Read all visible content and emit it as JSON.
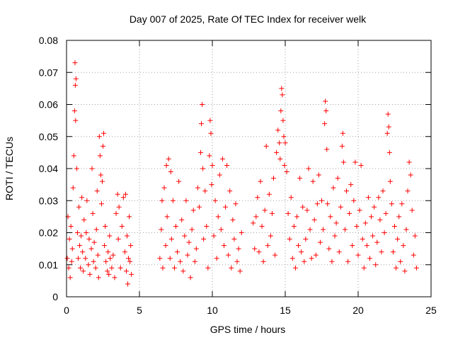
{
  "chart_data": {
    "type": "scatter",
    "title": "Day 007 of 2025, Rate Of TEC Index for receiver welk",
    "xlabel": "GPS time / hours",
    "ylabel": "ROTI / TECUs",
    "xlim": [
      0,
      25
    ],
    "ylim": [
      0,
      0.08
    ],
    "xticks": [
      0,
      5,
      10,
      15,
      20,
      25
    ],
    "xtick_labels": [
      "0",
      "5",
      "10",
      "15",
      "20",
      "25"
    ],
    "yticks": [
      0,
      0.01,
      0.02,
      0.03,
      0.04,
      0.05,
      0.06,
      0.07,
      0.08
    ],
    "ytick_labels": [
      "0",
      "0.01",
      "0.02",
      "0.03",
      "0.04",
      "0.05",
      "0.06",
      "0.07",
      "0.08"
    ],
    "grid": true,
    "marker": "+",
    "color": "#ff0000",
    "series": [
      {
        "points": [
          [
            0.05,
            0.012
          ],
          [
            0.1,
            0.025
          ],
          [
            0.15,
            0.009
          ],
          [
            0.2,
            0.018
          ],
          [
            0.25,
            0.006
          ],
          [
            0.3,
            0.022
          ],
          [
            0.35,
            0.011
          ],
          [
            0.4,
            0.015
          ],
          [
            0.45,
            0.034
          ],
          [
            0.5,
            0.044
          ],
          [
            0.55,
            0.058
          ],
          [
            0.58,
            0.073
          ],
          [
            0.6,
            0.066
          ],
          [
            0.62,
            0.055
          ],
          [
            0.65,
            0.068
          ],
          [
            0.7,
            0.04
          ],
          [
            0.75,
            0.02
          ],
          [
            0.8,
            0.012
          ],
          [
            0.85,
            0.028
          ],
          [
            0.9,
            0.016
          ],
          [
            0.95,
            0.009
          ],
          [
            1.0,
            0.019
          ],
          [
            1.05,
            0.031
          ],
          [
            1.1,
            0.014
          ],
          [
            1.15,
            0.008
          ],
          [
            1.2,
            0.024
          ],
          [
            1.3,
            0.012
          ],
          [
            1.35,
            0.02
          ],
          [
            1.4,
            0.03
          ],
          [
            1.5,
            0.01
          ],
          [
            1.55,
            0.018
          ],
          [
            1.6,
            0.007
          ],
          [
            1.7,
            0.015
          ],
          [
            1.75,
            0.04
          ],
          [
            1.8,
            0.026
          ],
          [
            1.85,
            0.011
          ],
          [
            1.9,
            0.017
          ],
          [
            2.0,
            0.009
          ],
          [
            2.05,
            0.021
          ],
          [
            2.1,
            0.033
          ],
          [
            2.15,
            0.013
          ],
          [
            2.2,
            0.006
          ],
          [
            2.25,
            0.05
          ],
          [
            2.3,
            0.044
          ],
          [
            2.35,
            0.038
          ],
          [
            2.4,
            0.029
          ],
          [
            2.45,
            0.036
          ],
          [
            2.5,
            0.047
          ],
          [
            2.55,
            0.051
          ],
          [
            2.6,
            0.016
          ],
          [
            2.65,
            0.022
          ],
          [
            2.7,
            0.011
          ],
          [
            2.8,
            0.008
          ],
          [
            2.85,
            0.014
          ],
          [
            2.9,
            0.007
          ],
          [
            2.95,
            0.019
          ],
          [
            3.0,
            0.012
          ],
          [
            3.1,
            0.009
          ],
          [
            3.2,
            0.013
          ],
          [
            3.3,
            0.006
          ],
          [
            3.4,
            0.026
          ],
          [
            3.5,
            0.032
          ],
          [
            3.55,
            0.018
          ],
          [
            3.6,
            0.028
          ],
          [
            3.7,
            0.009
          ],
          [
            3.8,
            0.022
          ],
          [
            3.9,
            0.031
          ],
          [
            4.0,
            0.014
          ],
          [
            4.05,
            0.032
          ],
          [
            4.1,
            0.008
          ],
          [
            4.15,
            0.019
          ],
          [
            4.2,
            0.004
          ],
          [
            4.25,
            0.012
          ],
          [
            4.3,
            0.025
          ],
          [
            4.35,
            0.011
          ],
          [
            4.4,
            0.016
          ],
          [
            4.45,
            0.007
          ],
          [
            6.4,
            0.012
          ],
          [
            6.5,
            0.021
          ],
          [
            6.55,
            0.03
          ],
          [
            6.6,
            0.009
          ],
          [
            6.7,
            0.034
          ],
          [
            6.8,
            0.016
          ],
          [
            6.85,
            0.041
          ],
          [
            6.9,
            0.025
          ],
          [
            7.0,
            0.043
          ],
          [
            7.1,
            0.012
          ],
          [
            7.15,
            0.039
          ],
          [
            7.2,
            0.018
          ],
          [
            7.3,
            0.03
          ],
          [
            7.4,
            0.009
          ],
          [
            7.5,
            0.022
          ],
          [
            7.6,
            0.014
          ],
          [
            7.7,
            0.036
          ],
          [
            7.8,
            0.011
          ],
          [
            7.9,
            0.024
          ],
          [
            8.0,
            0.008
          ],
          [
            8.1,
            0.019
          ],
          [
            8.2,
            0.03
          ],
          [
            8.3,
            0.013
          ],
          [
            8.4,
            0.017
          ],
          [
            8.5,
            0.006
          ],
          [
            8.6,
            0.021
          ],
          [
            8.7,
            0.027
          ],
          [
            8.8,
            0.011
          ],
          [
            8.9,
            0.015
          ],
          [
            9.0,
            0.034
          ],
          [
            9.1,
            0.028
          ],
          [
            9.2,
            0.045
          ],
          [
            9.25,
            0.054
          ],
          [
            9.3,
            0.06
          ],
          [
            9.35,
            0.04
          ],
          [
            9.4,
            0.018
          ],
          [
            9.5,
            0.033
          ],
          [
            9.6,
            0.022
          ],
          [
            9.7,
            0.009
          ],
          [
            9.8,
            0.044
          ],
          [
            9.85,
            0.055
          ],
          [
            9.9,
            0.051
          ],
          [
            9.95,
            0.035
          ],
          [
            10.0,
            0.041
          ],
          [
            10.1,
            0.019
          ],
          [
            10.2,
            0.03
          ],
          [
            10.3,
            0.012
          ],
          [
            10.4,
            0.025
          ],
          [
            10.5,
            0.038
          ],
          [
            10.6,
            0.021
          ],
          [
            10.7,
            0.043
          ],
          [
            10.8,
            0.016
          ],
          [
            10.9,
            0.028
          ],
          [
            11.0,
            0.041
          ],
          [
            11.1,
            0.013
          ],
          [
            11.2,
            0.033
          ],
          [
            11.3,
            0.009
          ],
          [
            11.4,
            0.024
          ],
          [
            11.5,
            0.018
          ],
          [
            11.6,
            0.029
          ],
          [
            11.7,
            0.011
          ],
          [
            11.8,
            0.015
          ],
          [
            11.9,
            0.008
          ],
          [
            12.0,
            0.02
          ],
          [
            12.8,
            0.023
          ],
          [
            12.9,
            0.015
          ],
          [
            13.0,
            0.025
          ],
          [
            13.1,
            0.031
          ],
          [
            13.2,
            0.014
          ],
          [
            13.3,
            0.036
          ],
          [
            13.4,
            0.022
          ],
          [
            13.5,
            0.011
          ],
          [
            13.6,
            0.027
          ],
          [
            13.7,
            0.047
          ],
          [
            13.8,
            0.016
          ],
          [
            13.9,
            0.032
          ],
          [
            14.0,
            0.019
          ],
          [
            14.1,
            0.026
          ],
          [
            14.2,
            0.037
          ],
          [
            14.3,
            0.013
          ],
          [
            14.4,
            0.045
          ],
          [
            14.5,
            0.052
          ],
          [
            14.6,
            0.048
          ],
          [
            14.65,
            0.043
          ],
          [
            14.7,
            0.058
          ],
          [
            14.75,
            0.065
          ],
          [
            14.8,
            0.063
          ],
          [
            14.85,
            0.055
          ],
          [
            14.9,
            0.05
          ],
          [
            14.95,
            0.041
          ],
          [
            15.0,
            0.048
          ],
          [
            15.1,
            0.039
          ],
          [
            15.2,
            0.026
          ],
          [
            15.3,
            0.018
          ],
          [
            15.4,
            0.031
          ],
          [
            15.5,
            0.012
          ],
          [
            15.6,
            0.022
          ],
          [
            15.7,
            0.009
          ],
          [
            15.8,
            0.025
          ],
          [
            15.9,
            0.016
          ],
          [
            16.0,
            0.037
          ],
          [
            16.1,
            0.014
          ],
          [
            16.2,
            0.028
          ],
          [
            16.3,
            0.011
          ],
          [
            16.4,
            0.018
          ],
          [
            16.5,
            0.027
          ],
          [
            16.6,
            0.04
          ],
          [
            16.7,
            0.021
          ],
          [
            16.8,
            0.012
          ],
          [
            16.9,
            0.036
          ],
          [
            17.0,
            0.024
          ],
          [
            17.1,
            0.013
          ],
          [
            17.2,
            0.029
          ],
          [
            17.3,
            0.038
          ],
          [
            17.4,
            0.017
          ],
          [
            17.5,
            0.03
          ],
          [
            17.6,
            0.021
          ],
          [
            17.7,
            0.054
          ],
          [
            17.75,
            0.061
          ],
          [
            17.8,
            0.058
          ],
          [
            17.85,
            0.046
          ],
          [
            17.9,
            0.029
          ],
          [
            18.0,
            0.015
          ],
          [
            18.1,
            0.025
          ],
          [
            18.2,
            0.011
          ],
          [
            18.3,
            0.034
          ],
          [
            18.4,
            0.019
          ],
          [
            18.5,
            0.023
          ],
          [
            18.6,
            0.037
          ],
          [
            18.7,
            0.014
          ],
          [
            18.8,
            0.028
          ],
          [
            18.9,
            0.047
          ],
          [
            18.95,
            0.051
          ],
          [
            19.0,
            0.042
          ],
          [
            19.1,
            0.021
          ],
          [
            19.2,
            0.033
          ],
          [
            19.3,
            0.011
          ],
          [
            19.4,
            0.026
          ],
          [
            19.5,
            0.035
          ],
          [
            19.6,
            0.016
          ],
          [
            19.7,
            0.03
          ],
          [
            19.8,
            0.042
          ],
          [
            19.9,
            0.022
          ],
          [
            20.0,
            0.013
          ],
          [
            20.1,
            0.027
          ],
          [
            20.2,
            0.041
          ],
          [
            20.3,
            0.018
          ],
          [
            20.4,
            0.009
          ],
          [
            20.5,
            0.023
          ],
          [
            20.6,
            0.016
          ],
          [
            20.7,
            0.031
          ],
          [
            20.8,
            0.012
          ],
          [
            20.9,
            0.025
          ],
          [
            21.0,
            0.019
          ],
          [
            21.1,
            0.028
          ],
          [
            21.2,
            0.01
          ],
          [
            21.3,
            0.017
          ],
          [
            21.4,
            0.031
          ],
          [
            21.5,
            0.024
          ],
          [
            21.6,
            0.014
          ],
          [
            21.7,
            0.033
          ],
          [
            21.8,
            0.02
          ],
          [
            21.9,
            0.026
          ],
          [
            22.0,
            0.051
          ],
          [
            22.05,
            0.057
          ],
          [
            22.1,
            0.053
          ],
          [
            22.15,
            0.045
          ],
          [
            22.2,
            0.036
          ],
          [
            22.3,
            0.029
          ],
          [
            22.4,
            0.014
          ],
          [
            22.5,
            0.022
          ],
          [
            22.6,
            0.009
          ],
          [
            22.7,
            0.018
          ],
          [
            22.8,
            0.025
          ],
          [
            22.9,
            0.011
          ],
          [
            23.0,
            0.029
          ],
          [
            23.1,
            0.016
          ],
          [
            23.2,
            0.008
          ],
          [
            23.3,
            0.021
          ],
          [
            23.4,
            0.033
          ],
          [
            23.5,
            0.042
          ],
          [
            23.6,
            0.038
          ],
          [
            23.7,
            0.027
          ],
          [
            23.8,
            0.013
          ],
          [
            23.9,
            0.019
          ],
          [
            24.0,
            0.009
          ]
        ]
      }
    ]
  }
}
